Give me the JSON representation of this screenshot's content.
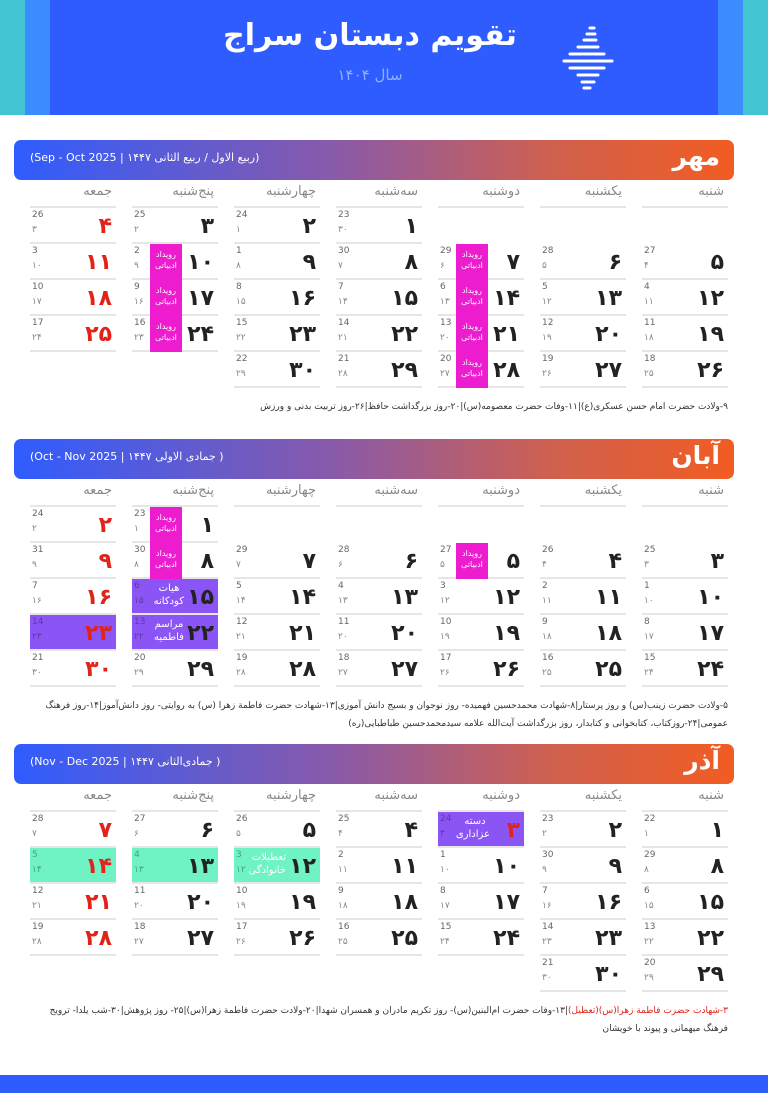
{
  "header": {
    "title": "تقویم دبستان سراج",
    "year": "سال ۱۴۰۴"
  },
  "weekdays": [
    "شنبه",
    "یکشنبه",
    "دوشنبه",
    "سه‌شنبه",
    "چهارشنبه",
    "پنج‌شنبه",
    "جمعه"
  ],
  "colors": {
    "pink": "#ee1ccf",
    "purple": "#8b55f6",
    "green": "#6ff2c4",
    "holiday": "#e2231a"
  },
  "months": [
    {
      "name": "مهر",
      "subtitle": "(ربیع الاول / ربیع الثانی ۱۴۴۷ | Sep - Oct 2025)",
      "note": "۹-ولادت حضرت امام حسن عسکری(ع)|۱۱-وفات حضرت معصومه(س)|۲۰-روز بزرگداشت حافظ|۲۶-روز تربیت بدنی و ورزش",
      "note_red": "",
      "rows": [
        [
          null,
          null,
          null,
          {
            "d": 1,
            "g": 23,
            "h": 30
          },
          {
            "d": 2,
            "g": 24,
            "h": 1
          },
          {
            "d": 3,
            "g": 25,
            "h": 2
          },
          {
            "d": 4,
            "g": 26,
            "h": 3,
            "hol": true
          }
        ],
        [
          {
            "d": 5,
            "g": 27,
            "h": 4
          },
          {
            "d": 6,
            "g": 28,
            "h": 5
          },
          {
            "d": 7,
            "g": 29,
            "h": 6,
            "ev": "رویداد ادبیاتی"
          },
          {
            "d": 8,
            "g": 30,
            "h": 7
          },
          {
            "d": 9,
            "g": 1,
            "h": 8
          },
          {
            "d": 10,
            "g": 2,
            "h": 9,
            "ev": "رویداد ادبیاتی"
          },
          {
            "d": 11,
            "g": 3,
            "h": 10,
            "hol": true
          }
        ],
        [
          {
            "d": 12,
            "g": 4,
            "h": 11
          },
          {
            "d": 13,
            "g": 5,
            "h": 12
          },
          {
            "d": 14,
            "g": 6,
            "h": 13,
            "ev": "رویداد ادبیاتی"
          },
          {
            "d": 15,
            "g": 7,
            "h": 14
          },
          {
            "d": 16,
            "g": 8,
            "h": 15
          },
          {
            "d": 17,
            "g": 9,
            "h": 16,
            "ev": "رویداد ادبیاتی"
          },
          {
            "d": 18,
            "g": 10,
            "h": 17,
            "hol": true
          }
        ],
        [
          {
            "d": 19,
            "g": 11,
            "h": 18
          },
          {
            "d": 20,
            "g": 12,
            "h": 19
          },
          {
            "d": 21,
            "g": 13,
            "h": 20,
            "ev": "رویداد ادبیاتی"
          },
          {
            "d": 22,
            "g": 14,
            "h": 21
          },
          {
            "d": 23,
            "g": 15,
            "h": 22
          },
          {
            "d": 24,
            "g": 16,
            "h": 23,
            "ev": "رویداد ادبیاتی"
          },
          {
            "d": 25,
            "g": 17,
            "h": 24,
            "hol": true
          }
        ],
        [
          {
            "d": 26,
            "g": 18,
            "h": 25
          },
          {
            "d": 27,
            "g": 19,
            "h": 26
          },
          {
            "d": 28,
            "g": 20,
            "h": 27,
            "ev": "رویداد ادبیاتی"
          },
          {
            "d": 29,
            "g": 21,
            "h": 28
          },
          {
            "d": 30,
            "g": 22,
            "h": 29
          },
          null,
          null
        ]
      ]
    },
    {
      "name": "آبان",
      "subtitle": "( جمادی الاولی ۱۴۴۷ | Oct - Nov 2025)",
      "note": "۵-ولادت حضرت زینب(س) و روز پرستار|۸-شهادت محمدحسین فهمیده- روز نوجوان و بسیج دانش آموزی|۱۳-شهادت حضرت فاطمة زهرا (س) به روایتی- روز دانش‌آموز|۱۴-روز فرهنگ عمومی|۲۴-روزکتاب، کتابخوانی و کتابدار، روز بزرگداشت آیت‌الله علامه سیدمحمدحسین طباطبایی(ره)",
      "note_red": "",
      "rows": [
        [
          null,
          null,
          null,
          null,
          null,
          {
            "d": 1,
            "g": 23,
            "h": 1,
            "ev": "رویداد ادبیاتی"
          },
          {
            "d": 2,
            "g": 24,
            "h": 2,
            "hol": true
          }
        ],
        [
          {
            "d": 3,
            "g": 25,
            "h": 3
          },
          {
            "d": 4,
            "g": 26,
            "h": 4
          },
          {
            "d": 5,
            "g": 27,
            "h": 5,
            "ev": "رویداد ادبیاتی"
          },
          {
            "d": 6,
            "g": 28,
            "h": 6
          },
          {
            "d": 7,
            "g": 29,
            "h": 7
          },
          {
            "d": 8,
            "g": 30,
            "h": 8,
            "ev": "رویداد ادبیاتی"
          },
          {
            "d": 9,
            "g": 31,
            "h": 9,
            "hol": true
          }
        ],
        [
          {
            "d": 10,
            "g": 1,
            "h": 10
          },
          {
            "d": 11,
            "g": 2,
            "h": 11
          },
          {
            "d": 12,
            "g": 3,
            "h": 12
          },
          {
            "d": 13,
            "g": 4,
            "h": 13
          },
          {
            "d": 14,
            "g": 5,
            "h": 14
          },
          {
            "d": 15,
            "g": 6,
            "h": 15,
            "fill": "purple",
            "label": "هیات کودکانه"
          },
          {
            "d": 16,
            "g": 7,
            "h": 16,
            "hol": true
          }
        ],
        [
          {
            "d": 17,
            "g": 8,
            "h": 17
          },
          {
            "d": 18,
            "g": 9,
            "h": 18
          },
          {
            "d": 19,
            "g": 10,
            "h": 19
          },
          {
            "d": 20,
            "g": 11,
            "h": 20
          },
          {
            "d": 21,
            "g": 12,
            "h": 21
          },
          {
            "d": 22,
            "g": 13,
            "h": 22,
            "fill": "purple",
            "label": "مراسم فاطمیه"
          },
          {
            "d": 23,
            "g": 14,
            "h": 23,
            "hol": true,
            "fill": "purple"
          }
        ],
        [
          {
            "d": 24,
            "g": 15,
            "h": 24
          },
          {
            "d": 25,
            "g": 16,
            "h": 25
          },
          {
            "d": 26,
            "g": 17,
            "h": 26
          },
          {
            "d": 27,
            "g": 18,
            "h": 27
          },
          {
            "d": 28,
            "g": 19,
            "h": 28
          },
          {
            "d": 29,
            "g": 20,
            "h": 29
          },
          {
            "d": 30,
            "g": 21,
            "h": 30,
            "hol": true
          }
        ]
      ]
    },
    {
      "name": "آذر",
      "subtitle": "( جمادی‌الثانی ۱۴۴۷ | Nov - Dec 2025)",
      "note_red": "۳-شهادت حضرت فاطمة زهرا(س)(تعطیل)",
      "note": "|۱۳-وفات حضرت ام‌البنین(س)- روز تکریم مادران و همسران شهدا|۲۰-ولادت حضرت فاطمة زهرا(س)|۲۵- روز پژوهش|۳۰-شب یلدا- ترویج فرهنگ میهمانی و پیوند با خویشان",
      "rows": [
        [
          {
            "d": 1,
            "g": 22,
            "h": 1
          },
          {
            "d": 2,
            "g": 23,
            "h": 2
          },
          {
            "d": 3,
            "g": 24,
            "h": 3,
            "hol": true,
            "fill": "purple",
            "label": "دسته عزاداری"
          },
          {
            "d": 4,
            "g": 25,
            "h": 4
          },
          {
            "d": 5,
            "g": 26,
            "h": 5
          },
          {
            "d": 6,
            "g": 27,
            "h": 6
          },
          {
            "d": 7,
            "g": 28,
            "h": 7,
            "hol": true
          }
        ],
        [
          {
            "d": 8,
            "g": 29,
            "h": 8
          },
          {
            "d": 9,
            "g": 30,
            "h": 9
          },
          {
            "d": 10,
            "g": 1,
            "h": 10
          },
          {
            "d": 11,
            "g": 2,
            "h": 11
          },
          {
            "d": 12,
            "g": 3,
            "h": 12,
            "fill": "green",
            "label": "تعطیلات خانوادگی"
          },
          {
            "d": 13,
            "g": 4,
            "h": 13,
            "fill": "green"
          },
          {
            "d": 14,
            "g": 5,
            "h": 14,
            "hol": true,
            "fill": "green"
          }
        ],
        [
          {
            "d": 15,
            "g": 6,
            "h": 15
          },
          {
            "d": 16,
            "g": 7,
            "h": 16
          },
          {
            "d": 17,
            "g": 8,
            "h": 17
          },
          {
            "d": 18,
            "g": 9,
            "h": 18
          },
          {
            "d": 19,
            "g": 10,
            "h": 19
          },
          {
            "d": 20,
            "g": 11,
            "h": 20
          },
          {
            "d": 21,
            "g": 12,
            "h": 21,
            "hol": true
          }
        ],
        [
          {
            "d": 22,
            "g": 13,
            "h": 22
          },
          {
            "d": 23,
            "g": 14,
            "h": 23
          },
          {
            "d": 24,
            "g": 15,
            "h": 24
          },
          {
            "d": 25,
            "g": 16,
            "h": 25
          },
          {
            "d": 26,
            "g": 17,
            "h": 26
          },
          {
            "d": 27,
            "g": 18,
            "h": 27
          },
          {
            "d": 28,
            "g": 19,
            "h": 28,
            "hol": true
          }
        ],
        [
          {
            "d": 29,
            "g": 20,
            "h": 29
          },
          {
            "d": 30,
            "g": 21,
            "h": 30
          },
          null,
          null,
          null,
          null,
          null
        ]
      ]
    }
  ]
}
